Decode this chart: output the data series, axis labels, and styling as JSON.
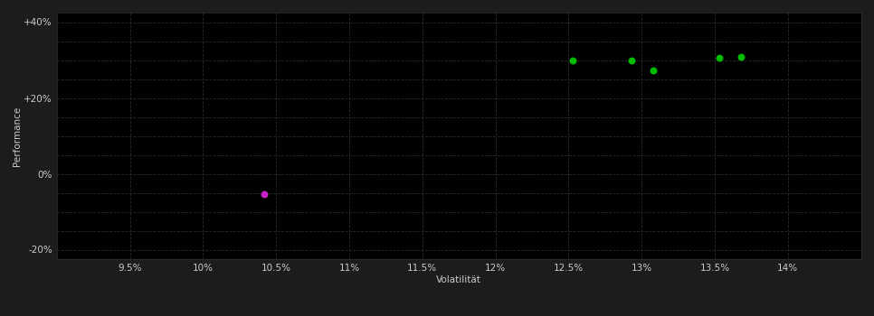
{
  "background_color": "#1c1c1c",
  "plot_bg_color": "#000000",
  "xlabel": "Volatilität",
  "ylabel": "Performance",
  "xlim": [
    0.09,
    0.145
  ],
  "ylim": [
    -0.225,
    0.425
  ],
  "xticks": [
    0.095,
    0.1,
    0.105,
    0.11,
    0.115,
    0.12,
    0.125,
    0.13,
    0.135,
    0.14
  ],
  "xtick_labels": [
    "9.5%",
    "10%",
    "10.5%",
    "11%",
    "11.5%",
    "12%",
    "12.5%",
    "13%",
    "13.5%",
    "14%"
  ],
  "yticks_major": [
    -0.2,
    0.0,
    0.2,
    0.4
  ],
  "yticks_major_labels": [
    "-20%",
    "0%",
    "+20%",
    "+40%"
  ],
  "yticks_minor": [
    -0.2,
    -0.15,
    -0.1,
    -0.05,
    0.0,
    0.05,
    0.1,
    0.15,
    0.2,
    0.25,
    0.3,
    0.35,
    0.4
  ],
  "green_points": [
    [
      0.1253,
      0.298
    ],
    [
      0.1293,
      0.3
    ],
    [
      0.1308,
      0.273
    ],
    [
      0.1353,
      0.305
    ],
    [
      0.1368,
      0.308
    ]
  ],
  "magenta_point": [
    0.1042,
    -0.053
  ],
  "green_color": "#00bb00",
  "magenta_color": "#cc22cc",
  "point_size": 22,
  "tick_color": "#cccccc",
  "tick_fontsize": 7.5,
  "label_fontsize": 7.5,
  "label_color": "#cccccc",
  "grid_color": "#2a2a2a",
  "grid_linewidth": 0.6
}
